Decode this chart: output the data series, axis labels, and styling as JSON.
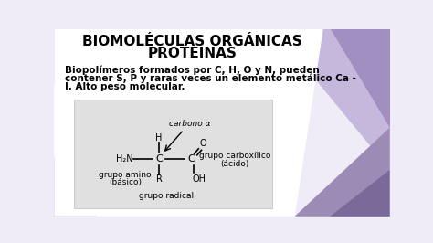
{
  "title_line1": "BIOMOLÉCULAS ORGÁNICAS",
  "title_line2": "PROTEINAS",
  "body_text_line1": "Biopolímeros formados por C, H, O y N, pueden",
  "body_text_line2": "contener S, P y raras veces un elemento metálico Ca -",
  "body_text_line3": "I. Alto peso molecular.",
  "bg_color": "#f0ecf7",
  "white_bg": "#ffffff",
  "purple_light": "#b39dca",
  "purple_mid": "#9b8bb5",
  "purple_dark": "#7b6a99",
  "box_color": "#e0e0e0",
  "title_fontsize": 11,
  "body_fontsize": 7.5,
  "diagram_fontsize": 6.5
}
